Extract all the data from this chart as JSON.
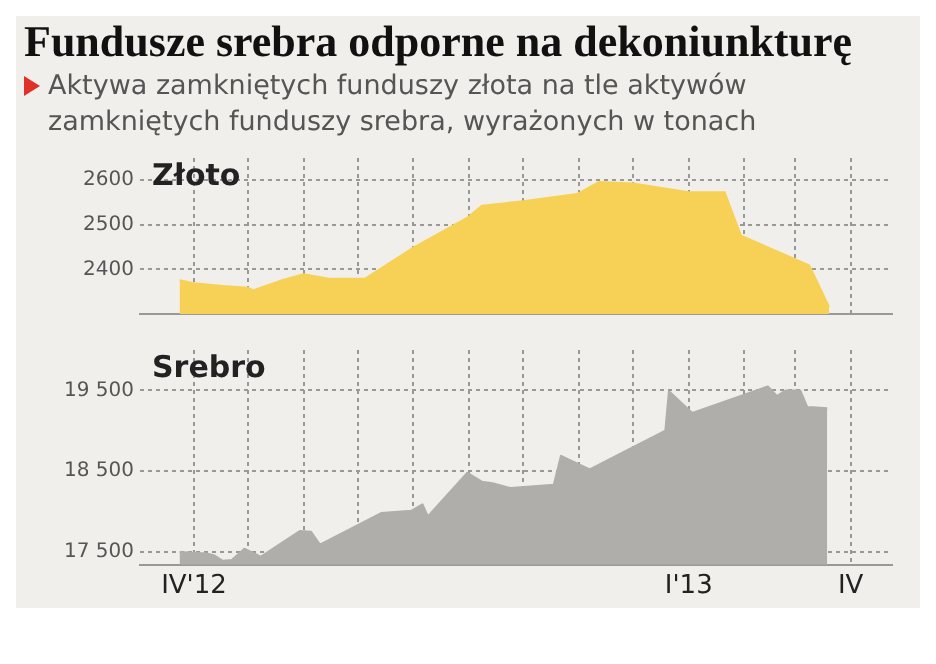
{
  "chart_data": [
    {
      "type": "area",
      "title": "Fundusze srebra odporne na dekoniunkturę",
      "subtitle": "Aktywa zamkniętych funduszy złota na tle aktywów zamkniętych funduszy srebra, wyrażonych w tonach",
      "tick_labels": "y",
      "grid": true,
      "xlim": [
        "2012-03-02",
        "2013-04-24"
      ],
      "ylim": [
        2300,
        2650
      ],
      "yticks": [
        2400,
        2500,
        2600
      ],
      "xticks": [
        {
          "value": "2012-04",
          "label": null
        },
        {
          "value": "2012-05",
          "label": null
        },
        {
          "value": "2012-06",
          "label": null
        },
        {
          "value": "2012-07",
          "label": null
        },
        {
          "value": "2012-08",
          "label": null
        },
        {
          "value": "2012-09",
          "label": null
        },
        {
          "value": "2012-10",
          "label": null
        },
        {
          "value": "2012-11",
          "label": null
        },
        {
          "value": "2012-12",
          "label": null
        },
        {
          "value": "2013-01",
          "label": null
        },
        {
          "value": "2013-02",
          "label": null
        },
        {
          "value": "2013-03",
          "label": null
        },
        {
          "value": "2013-04",
          "label": null
        }
      ],
      "series": [
        {
          "name": "Złoto",
          "color": "#f7d155",
          "x": [
            "2012-03-24",
            "2012-04-01",
            "2012-04-17",
            "2012-05-01",
            "2012-05-04",
            "2012-05-20",
            "2012-06-01",
            "2012-06-15",
            "2012-07-05",
            "2012-08-01",
            "2012-08-31",
            "2012-09-08",
            "2012-10-01",
            "2012-10-31",
            "2012-11-12",
            "2012-12-01",
            "2013-01-01",
            "2013-01-21",
            "2013-01-30",
            "2013-03-01",
            "2013-03-09",
            "2013-03-20"
          ],
          "values": [
            2376,
            2369,
            2363,
            2359,
            2353,
            2376,
            2389,
            2379,
            2379,
            2449,
            2516,
            2543,
            2553,
            2569,
            2596,
            2593,
            2573,
            2573,
            2476,
            2423,
            2409,
            2316
          ]
        }
      ]
    },
    {
      "type": "area",
      "grid": true,
      "xlim": [
        "2012-03-02",
        "2013-04-24"
      ],
      "ylim": [
        17340,
        20000
      ],
      "yticks": [
        {
          "value": 17500,
          "label": "17 500"
        },
        {
          "value": 18500,
          "label": "18 500"
        },
        {
          "value": 19500,
          "label": "19 500"
        }
      ],
      "xticks": [
        {
          "value": "2012-04",
          "label": "IV'12"
        },
        {
          "value": "2012-05",
          "label": null
        },
        {
          "value": "2012-06",
          "label": null
        },
        {
          "value": "2012-07",
          "label": null
        },
        {
          "value": "2012-08",
          "label": null
        },
        {
          "value": "2012-09",
          "label": null
        },
        {
          "value": "2012-10",
          "label": null
        },
        {
          "value": "2012-11",
          "label": null
        },
        {
          "value": "2012-12",
          "label": null
        },
        {
          "value": "2013-01",
          "label": "I'13"
        },
        {
          "value": "2013-02",
          "label": null
        },
        {
          "value": "2013-03",
          "label": null
        },
        {
          "value": "2013-04",
          "label": "IV"
        }
      ],
      "series": [
        {
          "name": "Srebro",
          "color": "#b0aeab",
          "x": [
            "2012-03-24",
            "2012-04-08",
            "2012-04-12",
            "2012-04-17",
            "2012-04-22",
            "2012-04-29",
            "2012-05-08",
            "2012-05-30",
            "2012-06-05",
            "2012-06-10",
            "2012-07-14",
            "2012-07-31",
            "2012-08-06",
            "2012-08-09",
            "2012-08-31",
            "2012-09-08",
            "2012-09-14",
            "2012-09-24",
            "2012-10-18",
            "2012-10-22",
            "2012-11-07",
            "2012-12-19",
            "2012-12-21",
            "2013-01-03",
            "2013-02-14",
            "2013-02-19",
            "2013-02-24",
            "2013-03-04",
            "2013-03-08",
            "2013-03-11",
            "2013-03-19"
          ],
          "values": [
            17500,
            17480,
            17460,
            17390,
            17400,
            17540,
            17440,
            17760,
            17750,
            17590,
            17980,
            18010,
            18090,
            17940,
            18480,
            18370,
            18350,
            18290,
            18330,
            18690,
            18520,
            19000,
            19490,
            19220,
            19550,
            19430,
            19500,
            19500,
            19290,
            19290,
            19280
          ]
        }
      ]
    }
  ]
}
